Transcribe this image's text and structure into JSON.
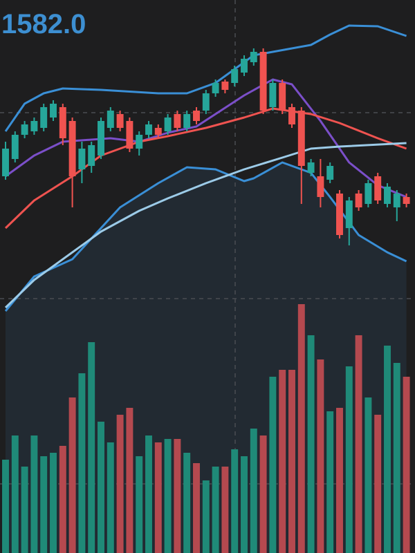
{
  "chart_data": {
    "type": "candlestick",
    "title": "1582.0",
    "xlim": [
      -0.58,
      42.9
    ],
    "ylim": [
      0,
      430
    ],
    "up_color": "#26a69a",
    "down_color": "#ef5350",
    "open": [
      175,
      200,
      235,
      240,
      245,
      260,
      275,
      255,
      185,
      190,
      205,
      245,
      265,
      255,
      215,
      235,
      245,
      240,
      265,
      245,
      270,
      270,
      295,
      312,
      310,
      325,
      340,
      355,
      275,
      310,
      275,
      270,
      180,
      175,
      170,
      150,
      100,
      150,
      135,
      175,
      135,
      130,
      145
    ],
    "close": [
      215,
      235,
      250,
      255,
      275,
      280,
      230,
      175,
      215,
      220,
      255,
      270,
      245,
      215,
      235,
      250,
      235,
      260,
      245,
      265,
      255,
      295,
      310,
      300,
      330,
      345,
      355,
      270,
      310,
      270,
      250,
      190,
      195,
      145,
      190,
      90,
      140,
      130,
      165,
      140,
      160,
      150,
      135
    ],
    "high": [
      225,
      240,
      255,
      260,
      280,
      285,
      280,
      260,
      225,
      225,
      260,
      275,
      270,
      260,
      240,
      255,
      250,
      265,
      270,
      270,
      275,
      300,
      315,
      315,
      335,
      350,
      360,
      360,
      315,
      315,
      280,
      275,
      200,
      200,
      195,
      155,
      145,
      155,
      170,
      180,
      165,
      155,
      150
    ],
    "low": [
      170,
      195,
      230,
      235,
      240,
      255,
      220,
      130,
      165,
      180,
      200,
      240,
      240,
      210,
      205,
      230,
      230,
      235,
      240,
      240,
      250,
      265,
      290,
      295,
      305,
      320,
      335,
      265,
      270,
      265,
      245,
      135,
      175,
      130,
      165,
      85,
      75,
      125,
      130,
      135,
      130,
      110,
      130
    ],
    "volume": {
      "ylim": [
        0,
        370
      ],
      "up_color": "#1f8a78",
      "down_color": "#b5494f",
      "values": [
        135,
        170,
        125,
        170,
        140,
        145,
        155,
        225,
        260,
        305,
        190,
        160,
        200,
        210,
        140,
        170,
        160,
        165,
        165,
        145,
        130,
        105,
        125,
        125,
        150,
        140,
        180,
        170,
        255,
        265,
        265,
        360,
        315,
        280,
        205,
        210,
        270,
        315,
        225,
        200,
        300,
        275,
        255
      ]
    },
    "lines": [
      {
        "color": "#3a8fd6",
        "x": [
          0,
          2,
          4,
          6,
          10,
          16,
          19,
          22,
          24,
          26,
          28,
          30,
          32,
          34,
          36,
          39,
          42
        ],
        "values": [
          240,
          280,
          295,
          302,
          300,
          295,
          295,
          310,
          330,
          350,
          355,
          360,
          365,
          380,
          393,
          392,
          378
        ]
      },
      {
        "color": "#3a8fd6",
        "x": [
          0,
          3,
          7,
          12,
          16,
          19,
          22,
          25,
          26,
          29,
          32,
          34,
          37,
          40,
          42
        ],
        "values": [
          -20,
          30,
          55,
          130,
          165,
          188,
          185,
          168,
          172,
          195,
          180,
          145,
          90,
          65,
          52
        ]
      },
      {
        "color": "#7b4fc9",
        "x": [
          0,
          3,
          6,
          11,
          14,
          17,
          20,
          22,
          25,
          28,
          30,
          33,
          36,
          39,
          42
        ],
        "values": [
          175,
          205,
          225,
          230,
          225,
          238,
          247,
          265,
          292,
          315,
          308,
          255,
          195,
          162,
          145
        ]
      },
      {
        "color": "#ef5350",
        "x": [
          0,
          3,
          7,
          10,
          14,
          17,
          21,
          25,
          28,
          32,
          35,
          39,
          42
        ],
        "values": [
          100,
          140,
          175,
          205,
          225,
          233,
          245,
          260,
          273,
          265,
          252,
          230,
          215
        ]
      },
      {
        "color": "#9ccbe8",
        "x": [
          0,
          3,
          7,
          10,
          14,
          17,
          21,
          25,
          29,
          32,
          35,
          42
        ],
        "values": [
          -15,
          25,
          65,
          95,
          125,
          143,
          165,
          185,
          202,
          215,
          218,
          223
        ]
      }
    ]
  }
}
